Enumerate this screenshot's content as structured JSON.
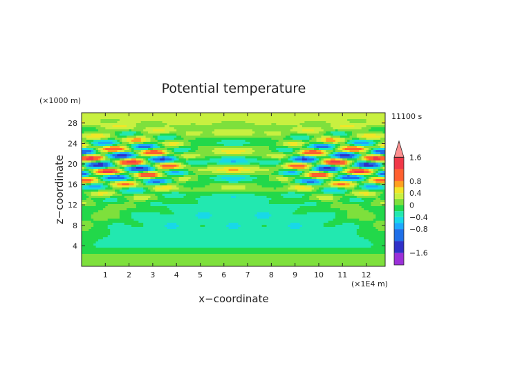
{
  "chart_data": {
    "type": "heatmap",
    "title": "Potential temperature",
    "xlabel": "x−coordinate",
    "ylabel": "z−coordinate",
    "x_unit": "(×1E4 m)",
    "y_unit": "(×1000 m)",
    "time_label": "11100 s",
    "xlim": [
      0,
      12.8
    ],
    "ylim": [
      0,
      30
    ],
    "x_ticks": [
      "1",
      "2",
      "3",
      "4",
      "5",
      "6",
      "7",
      "8",
      "9",
      "10",
      "11",
      "12"
    ],
    "y_ticks": [
      "4",
      "8",
      "12",
      "16",
      "20",
      "24",
      "28"
    ],
    "grid": false,
    "legend_position": "right",
    "colorbar": {
      "labels": [
        "1.6",
        "0.8",
        "0.4",
        "0",
        "−0.4",
        "−0.8",
        "−1.6"
      ],
      "levels": [
        -2.0,
        -1.6,
        -1.2,
        -0.8,
        -0.6,
        -0.4,
        -0.2,
        0,
        0.2,
        0.4,
        0.6,
        0.8,
        1.2,
        1.6,
        2.0
      ],
      "colors": [
        "#9b30d8",
        "#3030c8",
        "#1f6fe8",
        "#1ea8ff",
        "#18d8e8",
        "#22e8b0",
        "#22d84a",
        "#7ee03c",
        "#c8f040",
        "#f0e628",
        "#ffa020",
        "#ff6030",
        "#f03848",
        "#ff9090"
      ]
    },
    "field_description_values": {
      "x_domain": [
        0,
        12.8
      ],
      "z_domain": [
        0,
        30
      ]
    }
  }
}
